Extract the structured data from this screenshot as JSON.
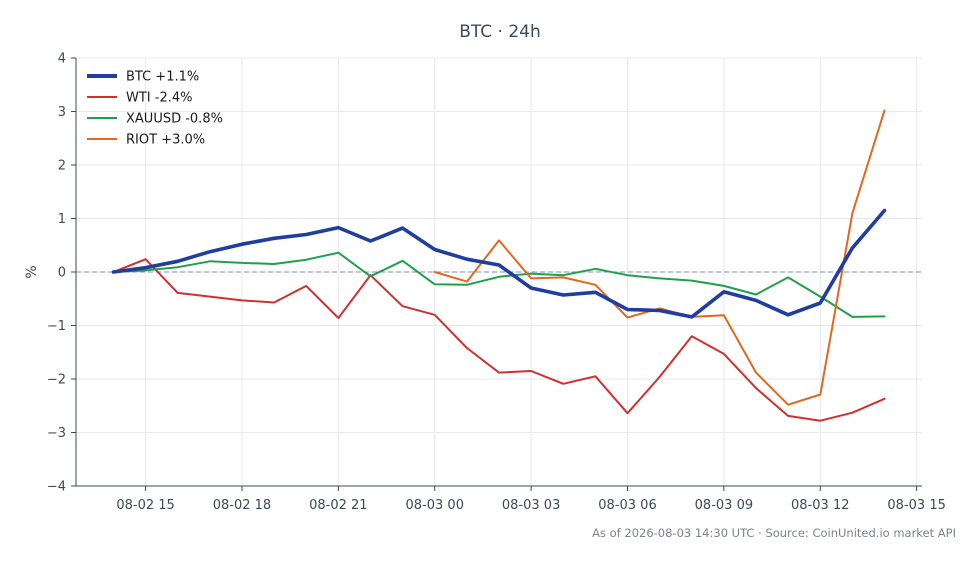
{
  "chart_data": {
    "type": "line",
    "title": "BTC · 24h",
    "xlabel": "",
    "ylabel": "%",
    "ylim": [
      -4,
      4
    ],
    "yticks": [
      -4,
      -3,
      -2,
      -1,
      0,
      1,
      2,
      3,
      4
    ],
    "ytick_labels": [
      "−4",
      "−3",
      "−2",
      "−1",
      "0",
      "1",
      "2",
      "3",
      "4"
    ],
    "xlim": [
      "2026-08-02 12:50",
      "2026-08-03 15:10"
    ],
    "xticks": [
      "2026-08-02 15:00",
      "2026-08-02 18:00",
      "2026-08-02 21:00",
      "2026-08-03 00:00",
      "2026-08-03 03:00",
      "2026-08-03 06:00",
      "2026-08-03 09:00",
      "2026-08-03 12:00",
      "2026-08-03 15:00"
    ],
    "xtick_labels": [
      "08-02 15",
      "08-02 18",
      "08-02 21",
      "08-03 00",
      "08-03 03",
      "08-03 06",
      "08-03 09",
      "08-03 12",
      "08-03 15"
    ],
    "x": [
      "2026-08-02 14:00",
      "2026-08-02 15:00",
      "2026-08-02 16:00",
      "2026-08-02 17:00",
      "2026-08-02 18:00",
      "2026-08-02 19:00",
      "2026-08-02 20:00",
      "2026-08-02 21:00",
      "2026-08-02 22:00",
      "2026-08-02 23:00",
      "2026-08-03 00:00",
      "2026-08-03 01:00",
      "2026-08-03 02:00",
      "2026-08-03 03:00",
      "2026-08-03 04:00",
      "2026-08-03 05:00",
      "2026-08-03 06:00",
      "2026-08-03 07:00",
      "2026-08-03 08:00",
      "2026-08-03 09:00",
      "2026-08-03 10:00",
      "2026-08-03 11:00",
      "2026-08-03 12:00",
      "2026-08-03 13:00",
      "2026-08-03 14:00"
    ],
    "zero_line": true,
    "grid": true,
    "legend_position": "top-left",
    "series": [
      {
        "name": "BTC +1.1%",
        "color": "#1f3e9e",
        "emphasis": true,
        "values": [
          0.0,
          0.08,
          0.2,
          0.38,
          0.52,
          0.63,
          0.7,
          0.83,
          0.58,
          0.82,
          0.42,
          0.24,
          0.13,
          -0.3,
          -0.43,
          -0.38,
          -0.7,
          -0.72,
          -0.84,
          -0.37,
          -0.53,
          -0.8,
          -0.58,
          0.45,
          1.15
        ]
      },
      {
        "name": "WTI -2.4%",
        "color": "#d03030",
        "values": [
          0.0,
          0.24,
          -0.39,
          -0.46,
          -0.53,
          -0.57,
          -0.26,
          -0.86,
          -0.06,
          -0.64,
          -0.8,
          -1.42,
          -1.88,
          -1.85,
          -2.09,
          -1.95,
          -2.64,
          -1.96,
          -1.2,
          -1.53,
          -2.17,
          -2.69,
          -2.78,
          -2.63,
          -2.37
        ]
      },
      {
        "name": "XAUUSD -0.8%",
        "color": "#20a04a",
        "values": [
          0.0,
          0.03,
          0.09,
          0.2,
          0.17,
          0.15,
          0.23,
          0.36,
          -0.08,
          0.21,
          -0.23,
          -0.24,
          -0.09,
          -0.03,
          -0.06,
          0.06,
          -0.06,
          -0.12,
          -0.16,
          -0.26,
          -0.42,
          -0.1,
          -0.46,
          -0.84,
          -0.83
        ]
      },
      {
        "name": "RIOT +3.0%",
        "color": "#e06820",
        "values": [
          null,
          null,
          null,
          null,
          null,
          null,
          null,
          null,
          null,
          null,
          0.0,
          -0.18,
          0.59,
          -0.12,
          -0.1,
          -0.24,
          -0.85,
          -0.68,
          -0.84,
          -0.81,
          -1.88,
          -2.48,
          -2.29,
          1.1,
          3.02
        ]
      }
    ],
    "footnote": "As of 2026-08-03 14:30 UTC · Source: CoinUnited.io market API"
  }
}
